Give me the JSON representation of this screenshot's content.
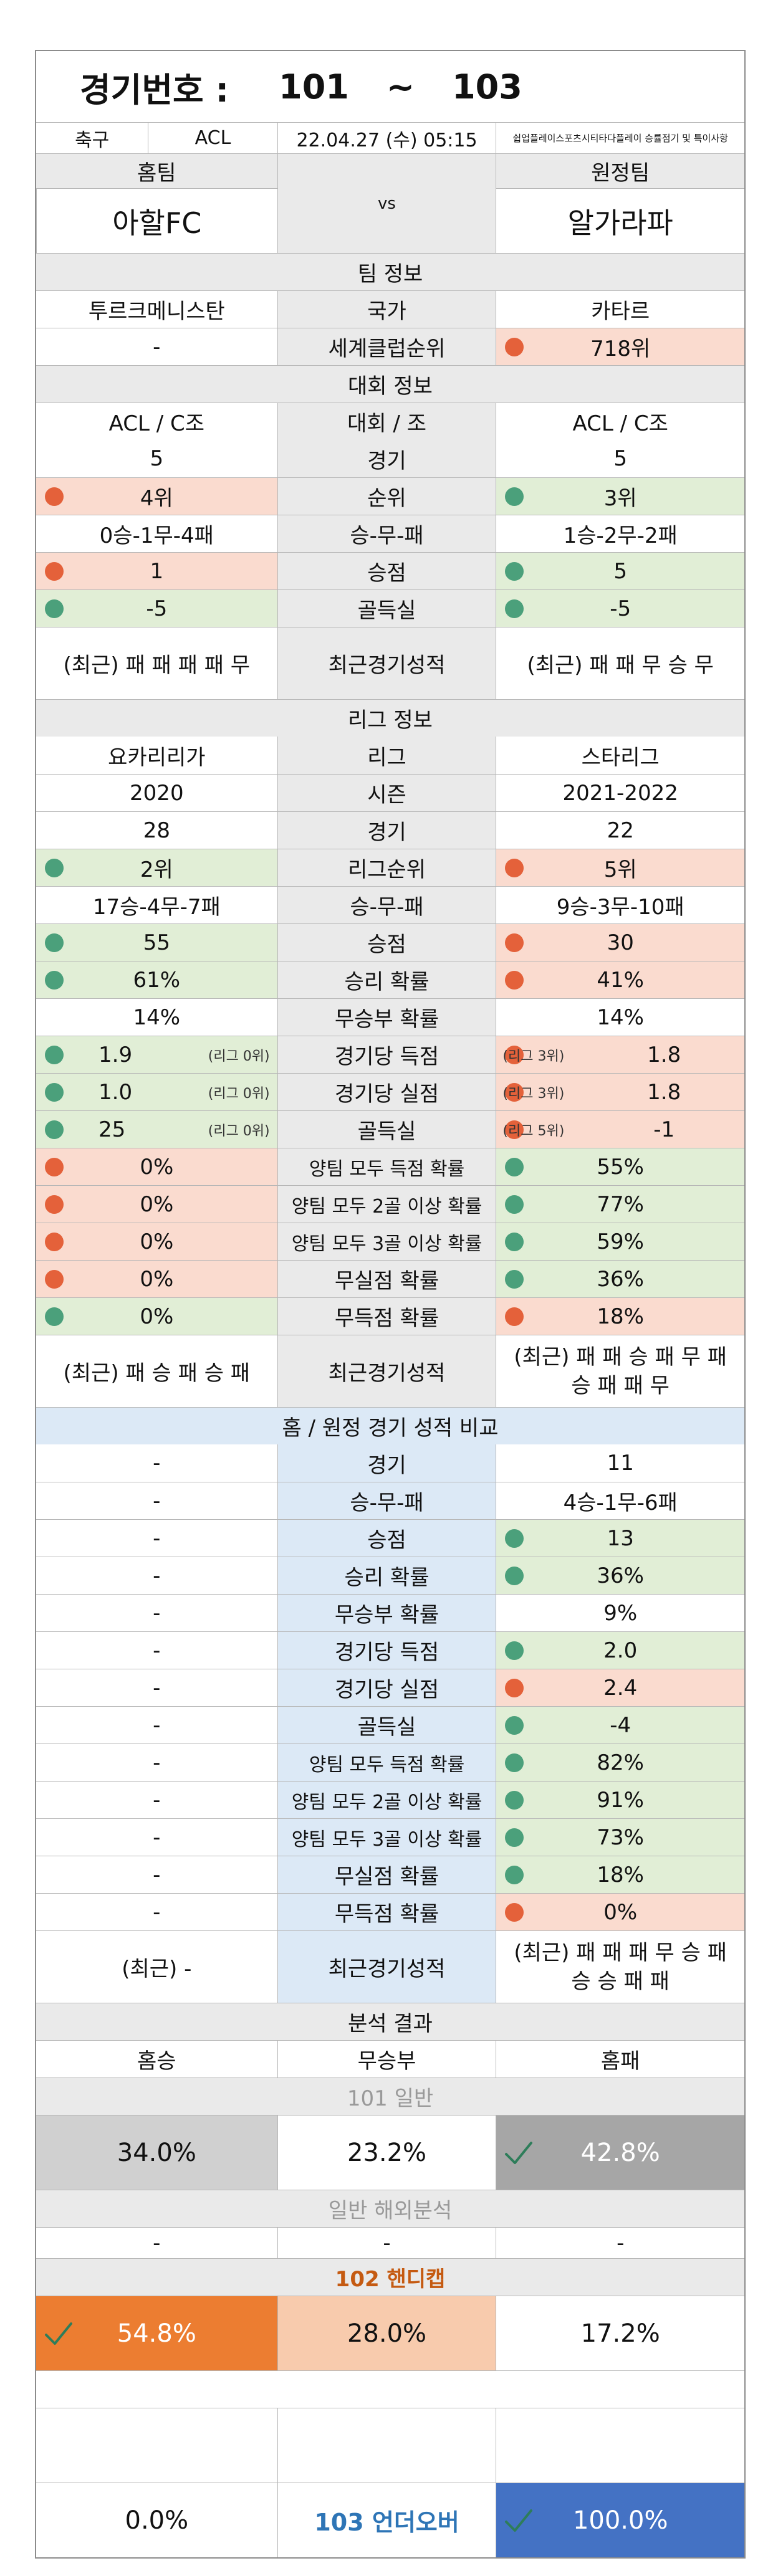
{
  "title": {
    "label": "경기번호 :",
    "from": "101",
    "sep": "~",
    "to": "103"
  },
  "meta": {
    "sport": "축구",
    "league": "ACL",
    "date": "22.04.27 (수) 05:15",
    "disclaimer": "쉽업플레이스포츠시티타다플레이 승률점기 및 특이사항"
  },
  "teams": {
    "home_label": "홈팀",
    "away_label": "원정팀",
    "home": "아할FC",
    "vs": "vs",
    "away": "알가라파"
  },
  "team_info": {
    "title": "팀 정보",
    "country_label": "국가",
    "home_country": "투르크메니스탄",
    "away_country": "카타르",
    "rank_label": "세계클럽순위",
    "home_rank": "-",
    "away_rank": "718위"
  },
  "competition": {
    "title": "대회 정보",
    "group_label": "대회 / 조",
    "home_group": "ACL / C조",
    "away_group": "ACL / C조",
    "rows": [
      {
        "label": "경기",
        "home": "5",
        "away": "5"
      },
      {
        "label": "순위",
        "home": "4위",
        "away": "3위"
      },
      {
        "label": "승-무-패",
        "home": "0승-1무-4패",
        "away": "1승-2무-2패"
      },
      {
        "label": "승점",
        "home": "1",
        "away": "5"
      },
      {
        "label": "골득실",
        "home": "-5",
        "away": "-5"
      }
    ],
    "recent_label": "최근경기성적",
    "home_recent": "(최근) 패 패 패 패 무",
    "away_recent": "(최근) 패 패 무 승 무"
  },
  "league": {
    "title": "리그 정보",
    "rows": [
      {
        "label": "리그",
        "home": "요카리리가",
        "away": "스타리그"
      },
      {
        "label": "시즌",
        "home": "2020",
        "away": "2021-2022"
      },
      {
        "label": "경기",
        "home": "28",
        "away": "22"
      },
      {
        "label": "리그순위",
        "home": "2위",
        "away": "5위"
      },
      {
        "label": "승-무-패",
        "home": "17승-4무-7패",
        "away": "9승-3무-10패"
      },
      {
        "label": "승점",
        "home": "55",
        "away": "30"
      },
      {
        "label": "승리 확률",
        "home": "61%",
        "away": "41%"
      },
      {
        "label": "무승부 확률",
        "home": "14%",
        "away": "14%"
      },
      {
        "label": "경기당 득점",
        "home": "1.9",
        "home_note": "(리그 0위)",
        "away": "1.8",
        "away_note": "(리그 3위)"
      },
      {
        "label": "경기당 실점",
        "home": "1.0",
        "home_note": "(리그 0위)",
        "away": "1.8",
        "away_note": "(리그 3위)"
      },
      {
        "label": "골득실",
        "home": "25",
        "home_note": "(리그 0위)",
        "away": "-1",
        "away_note": "(리그 5위)"
      },
      {
        "label": "양팀 모두 득점 확률",
        "home": "0%",
        "away": "55%"
      },
      {
        "label": "양팀 모두 2골 이상 확률",
        "home": "0%",
        "away": "77%"
      },
      {
        "label": "양팀 모두 3골 이상 확률",
        "home": "0%",
        "away": "59%"
      },
      {
        "label": "무실점 확률",
        "home": "0%",
        "away": "36%"
      },
      {
        "label": "무득점 확률",
        "home": "0%",
        "away": "18%"
      }
    ],
    "recent_label": "최근경기성적",
    "home_recent": "(최근) 패 승 패 승 패",
    "away_recent": "(최근) 패 패 승 패 무 패 승 패 패 무"
  },
  "homeaway": {
    "title": "홈 / 원정 경기 성적 비교",
    "rows": [
      {
        "label": "경기",
        "home": "-",
        "away": "11"
      },
      {
        "label": "승-무-패",
        "home": "-",
        "away": "4승-1무-6패"
      },
      {
        "label": "승점",
        "home": "-",
        "away": "13"
      },
      {
        "label": "승리 확률",
        "home": "-",
        "away": "36%"
      },
      {
        "label": "무승부 확률",
        "home": "-",
        "away": "9%"
      },
      {
        "label": "경기당 득점",
        "home": "-",
        "away": "2.0"
      },
      {
        "label": "경기당 실점",
        "home": "-",
        "away": "2.4"
      },
      {
        "label": "골득실",
        "home": "-",
        "away": "-4"
      },
      {
        "label": "양팀 모두 득점 확률",
        "home": "-",
        "away": "82%"
      },
      {
        "label": "양팀 모두 2골 이상 확률",
        "home": "-",
        "away": "91%"
      },
      {
        "label": "양팀 모두 3골 이상 확률",
        "home": "-",
        "away": "73%"
      },
      {
        "label": "무실점 확률",
        "home": "-",
        "away": "18%"
      },
      {
        "label": "무득점 확률",
        "home": "-",
        "away": "0%"
      }
    ],
    "recent_label": "최근경기성적",
    "home_recent": "(최근) -",
    "away_recent": "(최근) 패 패 패 무 승 패 승 승 패 패"
  },
  "analysis": {
    "title": "분석 결과",
    "col_home": "홈승",
    "col_draw": "무승부",
    "col_away": "홈패",
    "general_title": "101 일반",
    "general": {
      "home": "34.0%",
      "draw": "23.2%",
      "away": "42.8%"
    },
    "overseas_title": "일반 해외분석",
    "overseas": {
      "home": "-",
      "draw": "-",
      "away": "-"
    },
    "handicap_title": "102 핸디캡",
    "handicap": {
      "home": "54.8%",
      "draw": "28.0%",
      "away": "17.2%"
    },
    "underover_title": "103 언더오버",
    "underover": {
      "under": "0.0%",
      "over": "100.0%"
    }
  },
  "colors": {
    "orange": "#ec7d31",
    "blue": "#4472c4",
    "red_dot": "#e4613a",
    "green_dot": "#4ba07b",
    "grey": "#a6a6a6"
  }
}
